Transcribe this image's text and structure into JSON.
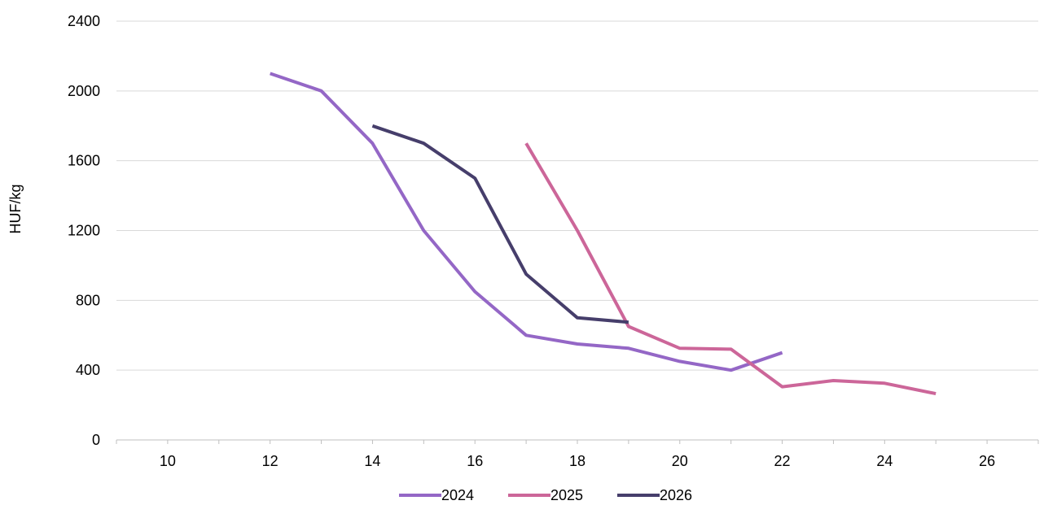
{
  "chart_data": {
    "type": "line",
    "title": "",
    "xlabel": "",
    "ylabel": "HUF/kg",
    "xlim": [
      9,
      27
    ],
    "ylim": [
      0,
      2400
    ],
    "x_ticks": [
      "10",
      "12",
      "14",
      "16",
      "18",
      "20",
      "22",
      "24",
      "26"
    ],
    "y_ticks": [
      "0",
      "400",
      "800",
      "1200",
      "1600",
      "2000",
      "2400"
    ],
    "grid": "horizontal",
    "legend_position": "bottom",
    "series": [
      {
        "name": "2024",
        "color": "#9467c6",
        "x": [
          12,
          13,
          14,
          15,
          16,
          17,
          18,
          19,
          20,
          21,
          22
        ],
        "values": [
          2100,
          2000,
          1700,
          1200,
          850,
          600,
          550,
          525,
          450,
          400,
          500
        ]
      },
      {
        "name": "2025",
        "color": "#cc6699",
        "x": [
          17,
          18,
          19,
          20,
          21,
          22,
          23,
          24,
          25
        ],
        "values": [
          1700,
          1200,
          650,
          525,
          520,
          305,
          340,
          325,
          265
        ]
      },
      {
        "name": "2026",
        "color": "#463e6b",
        "x": [
          14,
          15,
          16,
          17,
          18,
          19
        ],
        "values": [
          1800,
          1700,
          1500,
          950,
          700,
          675
        ]
      }
    ]
  }
}
